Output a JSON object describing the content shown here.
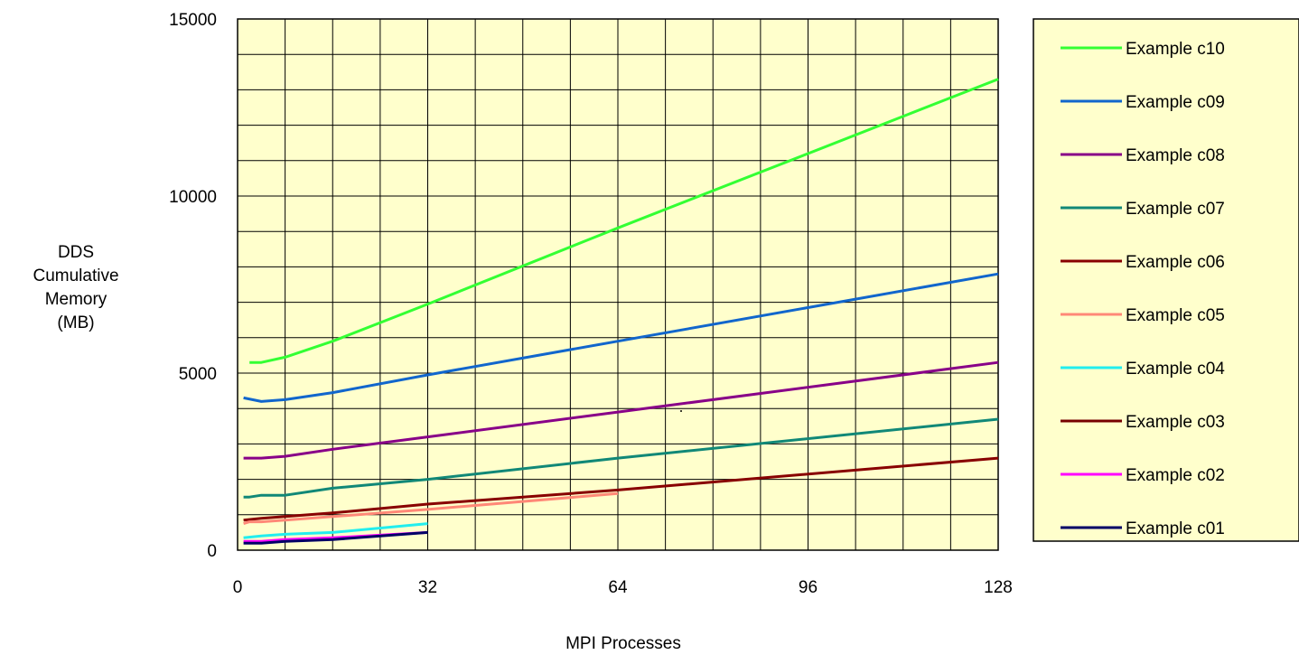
{
  "chart_data": {
    "type": "line",
    "title": "",
    "xlabel": "MPI Processes",
    "ylabel": [
      "DDS",
      "Cumulative",
      "Memory",
      "(MB)"
    ],
    "xlim": [
      0,
      128
    ],
    "ylim": [
      0,
      15000
    ],
    "xticks": [
      0,
      32,
      64,
      96,
      128
    ],
    "yticks": [
      0,
      5000,
      10000,
      15000
    ],
    "x_minor_step": 8,
    "y_minor_step": 1000,
    "grid": true,
    "plot_background": "#ffffcc",
    "legend_placement": "right",
    "series": [
      {
        "name": "Example c10",
        "color": "#33ff33",
        "x": [
          2,
          4,
          8,
          16,
          32,
          64,
          128
        ],
        "y": [
          5300,
          5300,
          5450,
          5900,
          6950,
          9100,
          13300
        ]
      },
      {
        "name": "Example c09",
        "color": "#1166cc",
        "x": [
          1,
          4,
          8,
          16,
          32,
          64,
          128
        ],
        "y": [
          4300,
          4200,
          4250,
          4450,
          4950,
          5900,
          7800
        ]
      },
      {
        "name": "Example c08",
        "color": "#880088",
        "x": [
          1,
          4,
          8,
          16,
          32,
          64,
          128
        ],
        "y": [
          2600,
          2600,
          2650,
          2850,
          3200,
          3900,
          5300
        ]
      },
      {
        "name": "Example c07",
        "color": "#118877",
        "x": [
          1,
          2,
          4,
          8,
          16,
          32,
          64,
          128
        ],
        "y": [
          1500,
          1500,
          1550,
          1550,
          1750,
          2000,
          2600,
          3700
        ]
      },
      {
        "name": "Example c06",
        "color": "#880000",
        "x": [
          1,
          4,
          8,
          16,
          32,
          64,
          128
        ],
        "y": [
          850,
          900,
          950,
          1050,
          1300,
          1700,
          2600
        ]
      },
      {
        "name": "Example c05",
        "color": "#ff8877",
        "x": [
          1,
          2,
          4,
          8,
          16,
          32,
          64
        ],
        "y": [
          750,
          800,
          800,
          850,
          950,
          1150,
          1600
        ]
      },
      {
        "name": "Example c04",
        "color": "#22eeee",
        "x": [
          1,
          4,
          8,
          16,
          32
        ],
        "y": [
          350,
          400,
          450,
          500,
          750
        ]
      },
      {
        "name": "Example c03",
        "color": "#770000",
        "x": [],
        "y": []
      },
      {
        "name": "Example c02",
        "color": "#ff00ff",
        "x": [
          1,
          4,
          8,
          16,
          32
        ],
        "y": [
          250,
          250,
          300,
          350,
          500
        ]
      },
      {
        "name": "Example c01",
        "color": "#000066",
        "x": [
          1,
          4,
          8,
          16,
          32
        ],
        "y": [
          200,
          200,
          250,
          300,
          500
        ]
      }
    ]
  }
}
